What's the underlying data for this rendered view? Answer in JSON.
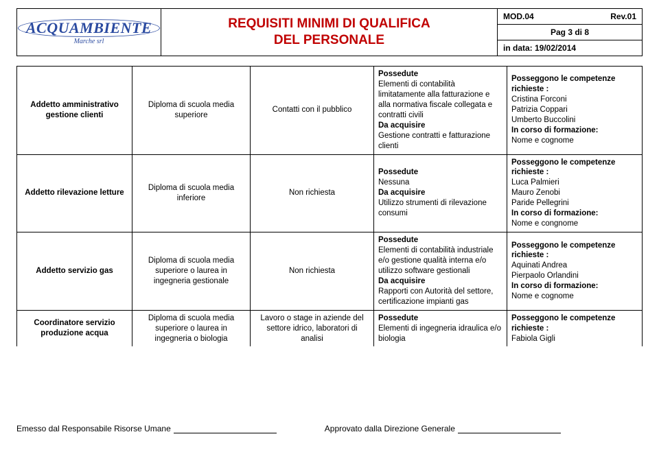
{
  "header": {
    "logo_main": "ACQUAMBIENTE",
    "logo_sub": "Marche srl",
    "title_line1": "REQUISITI MINIMI DI QUALIFICA",
    "title_line2": "DEL PERSONALE",
    "mod_label": "MOD.04",
    "rev_label": "Rev.01",
    "page_label": "Pag 3 di 8",
    "date_label": "in data: 19/02/2014"
  },
  "rows": [
    {
      "c1": "Addetto amministrativo gestione clienti",
      "c2": "Diploma di scuola media superiore",
      "c3": "Contatti con il pubblico",
      "c4_l1": "Possedute",
      "c4_t1": "Elementi di contabilità limitatamente alla fatturazione e alla normativa fiscale collegata e contratti civili",
      "c4_l2": "Da acquisire",
      "c4_t2": "Gestione contratti e fatturazione clienti",
      "c5_l1": "Posseggono le competenze richieste :",
      "c5_t1a": "Cristina Forconi",
      "c5_t1b": "Patrizia Coppari",
      "c5_t1c": "Umberto Buccolini",
      "c5_l2": "In corso di formazione:",
      "c5_t2": "Nome e cognome"
    },
    {
      "c1": "Addetto rilevazione letture",
      "c2": "Diploma di scuola media inferiore",
      "c3": "Non richiesta",
      "c4_l1": "Possedute",
      "c4_t1": "Nessuna",
      "c4_l2": "Da acquisire",
      "c4_t2": "Utilizzo strumenti di rilevazione consumi",
      "c5_l1": "Posseggono le competenze richieste :",
      "c5_t1a": "Luca Palmieri",
      "c5_t1b": "Mauro Zenobi",
      "c5_t1c": "Paride Pellegrini",
      "c5_l2": "In corso di formazione:",
      "c5_t2": "Nome e congnome"
    },
    {
      "c1": "Addetto servizio gas",
      "c2": "Diploma di scuola media superiore o laurea in ingegneria gestionale",
      "c3": "Non richiesta",
      "c4_l1": "Possedute",
      "c4_t1": "Elementi di contabilità industriale e/o gestione qualità interna e/o utilizzo software gestionali",
      "c4_l2": "Da acquisire",
      "c4_t2": "Rapporti con Autorità del settore, certificazione impianti gas",
      "c5_l1": "Posseggono le competenze richieste :",
      "c5_t1a": "Aquinati Andrea",
      "c5_t1b": "Pierpaolo Orlandini",
      "c5_t1c": "",
      "c5_l2": "In corso di formazione:",
      "c5_t2": "Nome e cognome"
    },
    {
      "c1": "Coordinatore servizio produzione acqua",
      "c2": "Diploma di scuola media superiore o laurea in ingegneria o biologia",
      "c3": "Lavoro o stage in aziende del settore idrico, laboratori di analisi",
      "c4_l1": "Possedute",
      "c4_t1": "Elementi di ingegneria idraulica e/o biologia",
      "c4_l2": "",
      "c4_t2": "",
      "c5_l1": "Posseggono le competenze richieste :",
      "c5_t1a": "Fabiola Gigli",
      "c5_t1b": "",
      "c5_t1c": "",
      "c5_l2": "",
      "c5_t2": ""
    }
  ],
  "footer": {
    "left": "Emesso dal Responsabile Risorse Umane",
    "right": "Approvato dalla Direzione Generale"
  }
}
